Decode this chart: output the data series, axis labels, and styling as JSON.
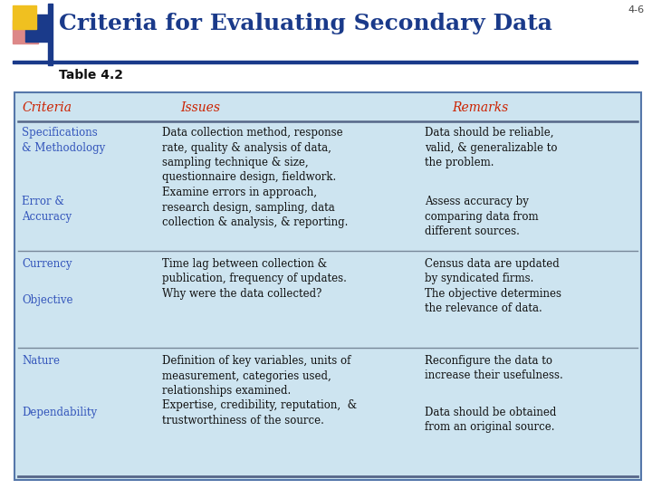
{
  "slide_number": "4-6",
  "title": "Criteria for Evaluating Secondary Data",
  "subtitle": "Table 4.2",
  "bg_color": "#ffffff",
  "table_bg": "#cde4f0",
  "table_border": "#5577aa",
  "header_color": "#cc2200",
  "criteria_color": "#3355bb",
  "body_color": "#111111",
  "title_color": "#1a3a8a",
  "header_row": [
    "Criteria",
    "Issues",
    "Remarks"
  ],
  "logo": {
    "yellow": "#f0c020",
    "red": "#cc3333",
    "blue": "#1a3a8a",
    "pink": "#dd8888"
  },
  "rows": [
    {
      "criteria1": "Specifications\n& Methodology",
      "criteria2": "Error &\nAccuracy",
      "issues": "Data collection method, response\nrate, quality & analysis of data,\nsampling technique & size,\nquestionnaire design, fieldwork.\nExamine errors in approach,\nresearch design, sampling, data\ncollection & analysis, & reporting.",
      "remarks1": "Data should be reliable,\nvalid, & generalizable to\nthe problem.",
      "remarks2": "Assess accuracy by\ncomparing data from\ndifferent sources."
    },
    {
      "criteria1": "Currency",
      "criteria2": "Objective",
      "issues": "Time lag between collection &\npublication, frequency of updates.\nWhy were the data collected?",
      "remarks1": "Census data are updated\nby syndicated firms.\nThe objective determines\nthe relevance of data.",
      "remarks2": ""
    },
    {
      "criteria1": "Nature",
      "criteria2": "Dependability",
      "issues": "Definition of key variables, units of\nmeasurement, categories used,\nrelationships examined.\nExpertise, credibility, reputation,  &\ntrustworthiness of the source.",
      "remarks1": "Reconfigure the data to\nincrease their usefulness.",
      "remarks2": "Data should be obtained\nfrom an original source."
    }
  ]
}
